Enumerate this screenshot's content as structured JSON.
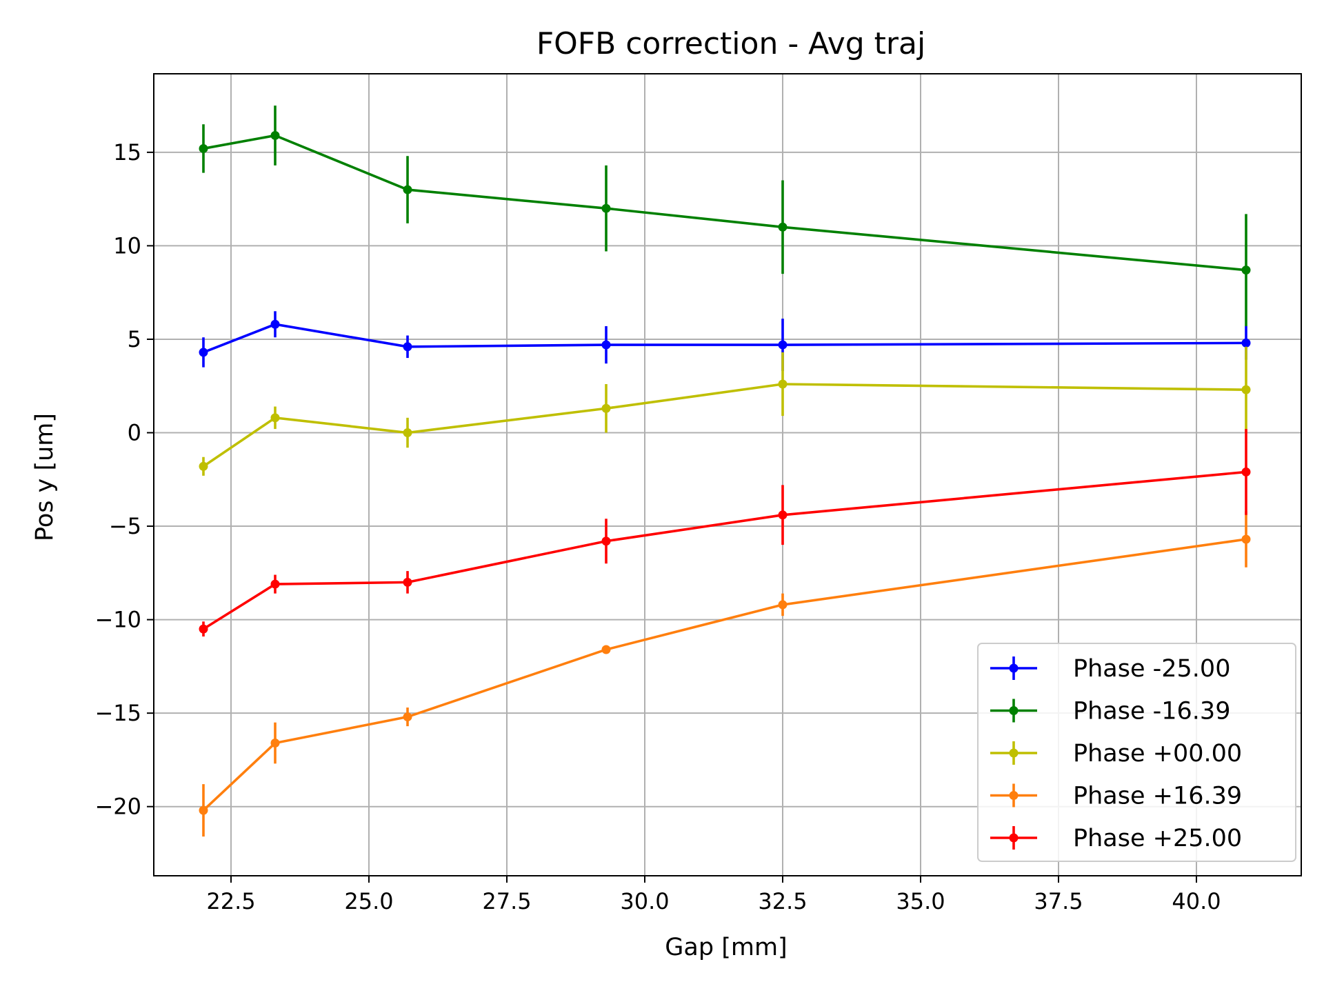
{
  "chart_data": {
    "type": "line",
    "title": "FOFB correction - Avg traj",
    "xlabel": "Gap [mm]",
    "ylabel": "Pos y [um]",
    "xlim": [
      21.1,
      41.9
    ],
    "ylim": [
      -23.7,
      19.2
    ],
    "xticks": [
      22.5,
      25.0,
      27.5,
      30.0,
      32.5,
      35.0,
      37.5,
      40.0
    ],
    "xtick_labels": [
      "22.5",
      "25.0",
      "27.5",
      "30.0",
      "32.5",
      "35.0",
      "37.5",
      "40.0"
    ],
    "yticks": [
      -20,
      -15,
      -10,
      -5,
      0,
      5,
      10,
      15
    ],
    "ytick_labels": [
      "−20",
      "−15",
      "−10",
      "−5",
      "0",
      "5",
      "10",
      "15"
    ],
    "grid": true,
    "error_bars": true,
    "legend_position": "lower right",
    "x": [
      22.0,
      23.3,
      25.7,
      29.3,
      32.5,
      40.9
    ],
    "series": [
      {
        "name": "Phase -25.00",
        "color": "#0000ff",
        "y": [
          4.3,
          5.8,
          4.6,
          4.7,
          4.7,
          4.8
        ],
        "err": [
          0.8,
          0.7,
          0.6,
          1.0,
          1.4,
          0.9
        ]
      },
      {
        "name": "Phase -16.39",
        "color": "#008000",
        "y": [
          15.2,
          15.9,
          13.0,
          12.0,
          11.0,
          8.7
        ],
        "err": [
          1.3,
          1.6,
          1.8,
          2.3,
          2.5,
          3.0
        ]
      },
      {
        "name": "Phase +00.00",
        "color": "#bfbf00",
        "y": [
          -1.8,
          0.8,
          0.0,
          1.3,
          2.6,
          2.3
        ],
        "err": [
          0.5,
          0.6,
          0.8,
          1.3,
          1.7,
          2.3
        ]
      },
      {
        "name": "Phase +16.39",
        "color": "#ff7f0e",
        "y": [
          -20.2,
          -16.6,
          -15.2,
          -11.6,
          -9.2,
          -5.7
        ],
        "err": [
          1.4,
          1.1,
          0.5,
          0.2,
          0.6,
          1.5
        ]
      },
      {
        "name": "Phase +25.00",
        "color": "#ff0000",
        "y": [
          -10.5,
          -8.1,
          -8.0,
          -5.8,
          -4.4,
          -2.1
        ],
        "err": [
          0.4,
          0.5,
          0.6,
          1.2,
          1.6,
          2.3
        ]
      }
    ]
  }
}
